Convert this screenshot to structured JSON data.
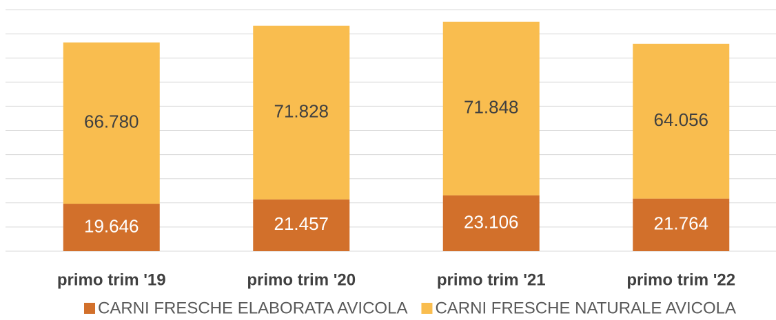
{
  "chart_data": {
    "type": "stacked_bar",
    "categories": [
      "primo trim '19",
      "primo trim '20",
      "primo trim '21",
      "primo trim '22"
    ],
    "series": [
      {
        "name": "CARNI FRESCHE ELABORATA AVICOLA",
        "color": "#d2702b",
        "values": [
          19646,
          21457,
          23106,
          21764
        ],
        "value_labels": [
          "19.646",
          "21.457",
          "23.106",
          "21.764"
        ],
        "label_color": "#ffffff"
      },
      {
        "name": "CARNI FRESCHE NATURALE AVICOLA",
        "color": "#f9bd4f",
        "values": [
          66780,
          71828,
          71848,
          64056
        ],
        "value_labels": [
          "66.780",
          "71.828",
          "71.848",
          "64.056"
        ],
        "label_color": "#404040"
      }
    ],
    "ylim": [
      0,
      100000
    ],
    "yticks": [
      0,
      10000,
      20000,
      30000,
      40000,
      50000,
      60000,
      70000,
      80000,
      90000,
      100000
    ],
    "grid": true,
    "legend": "bottom"
  }
}
